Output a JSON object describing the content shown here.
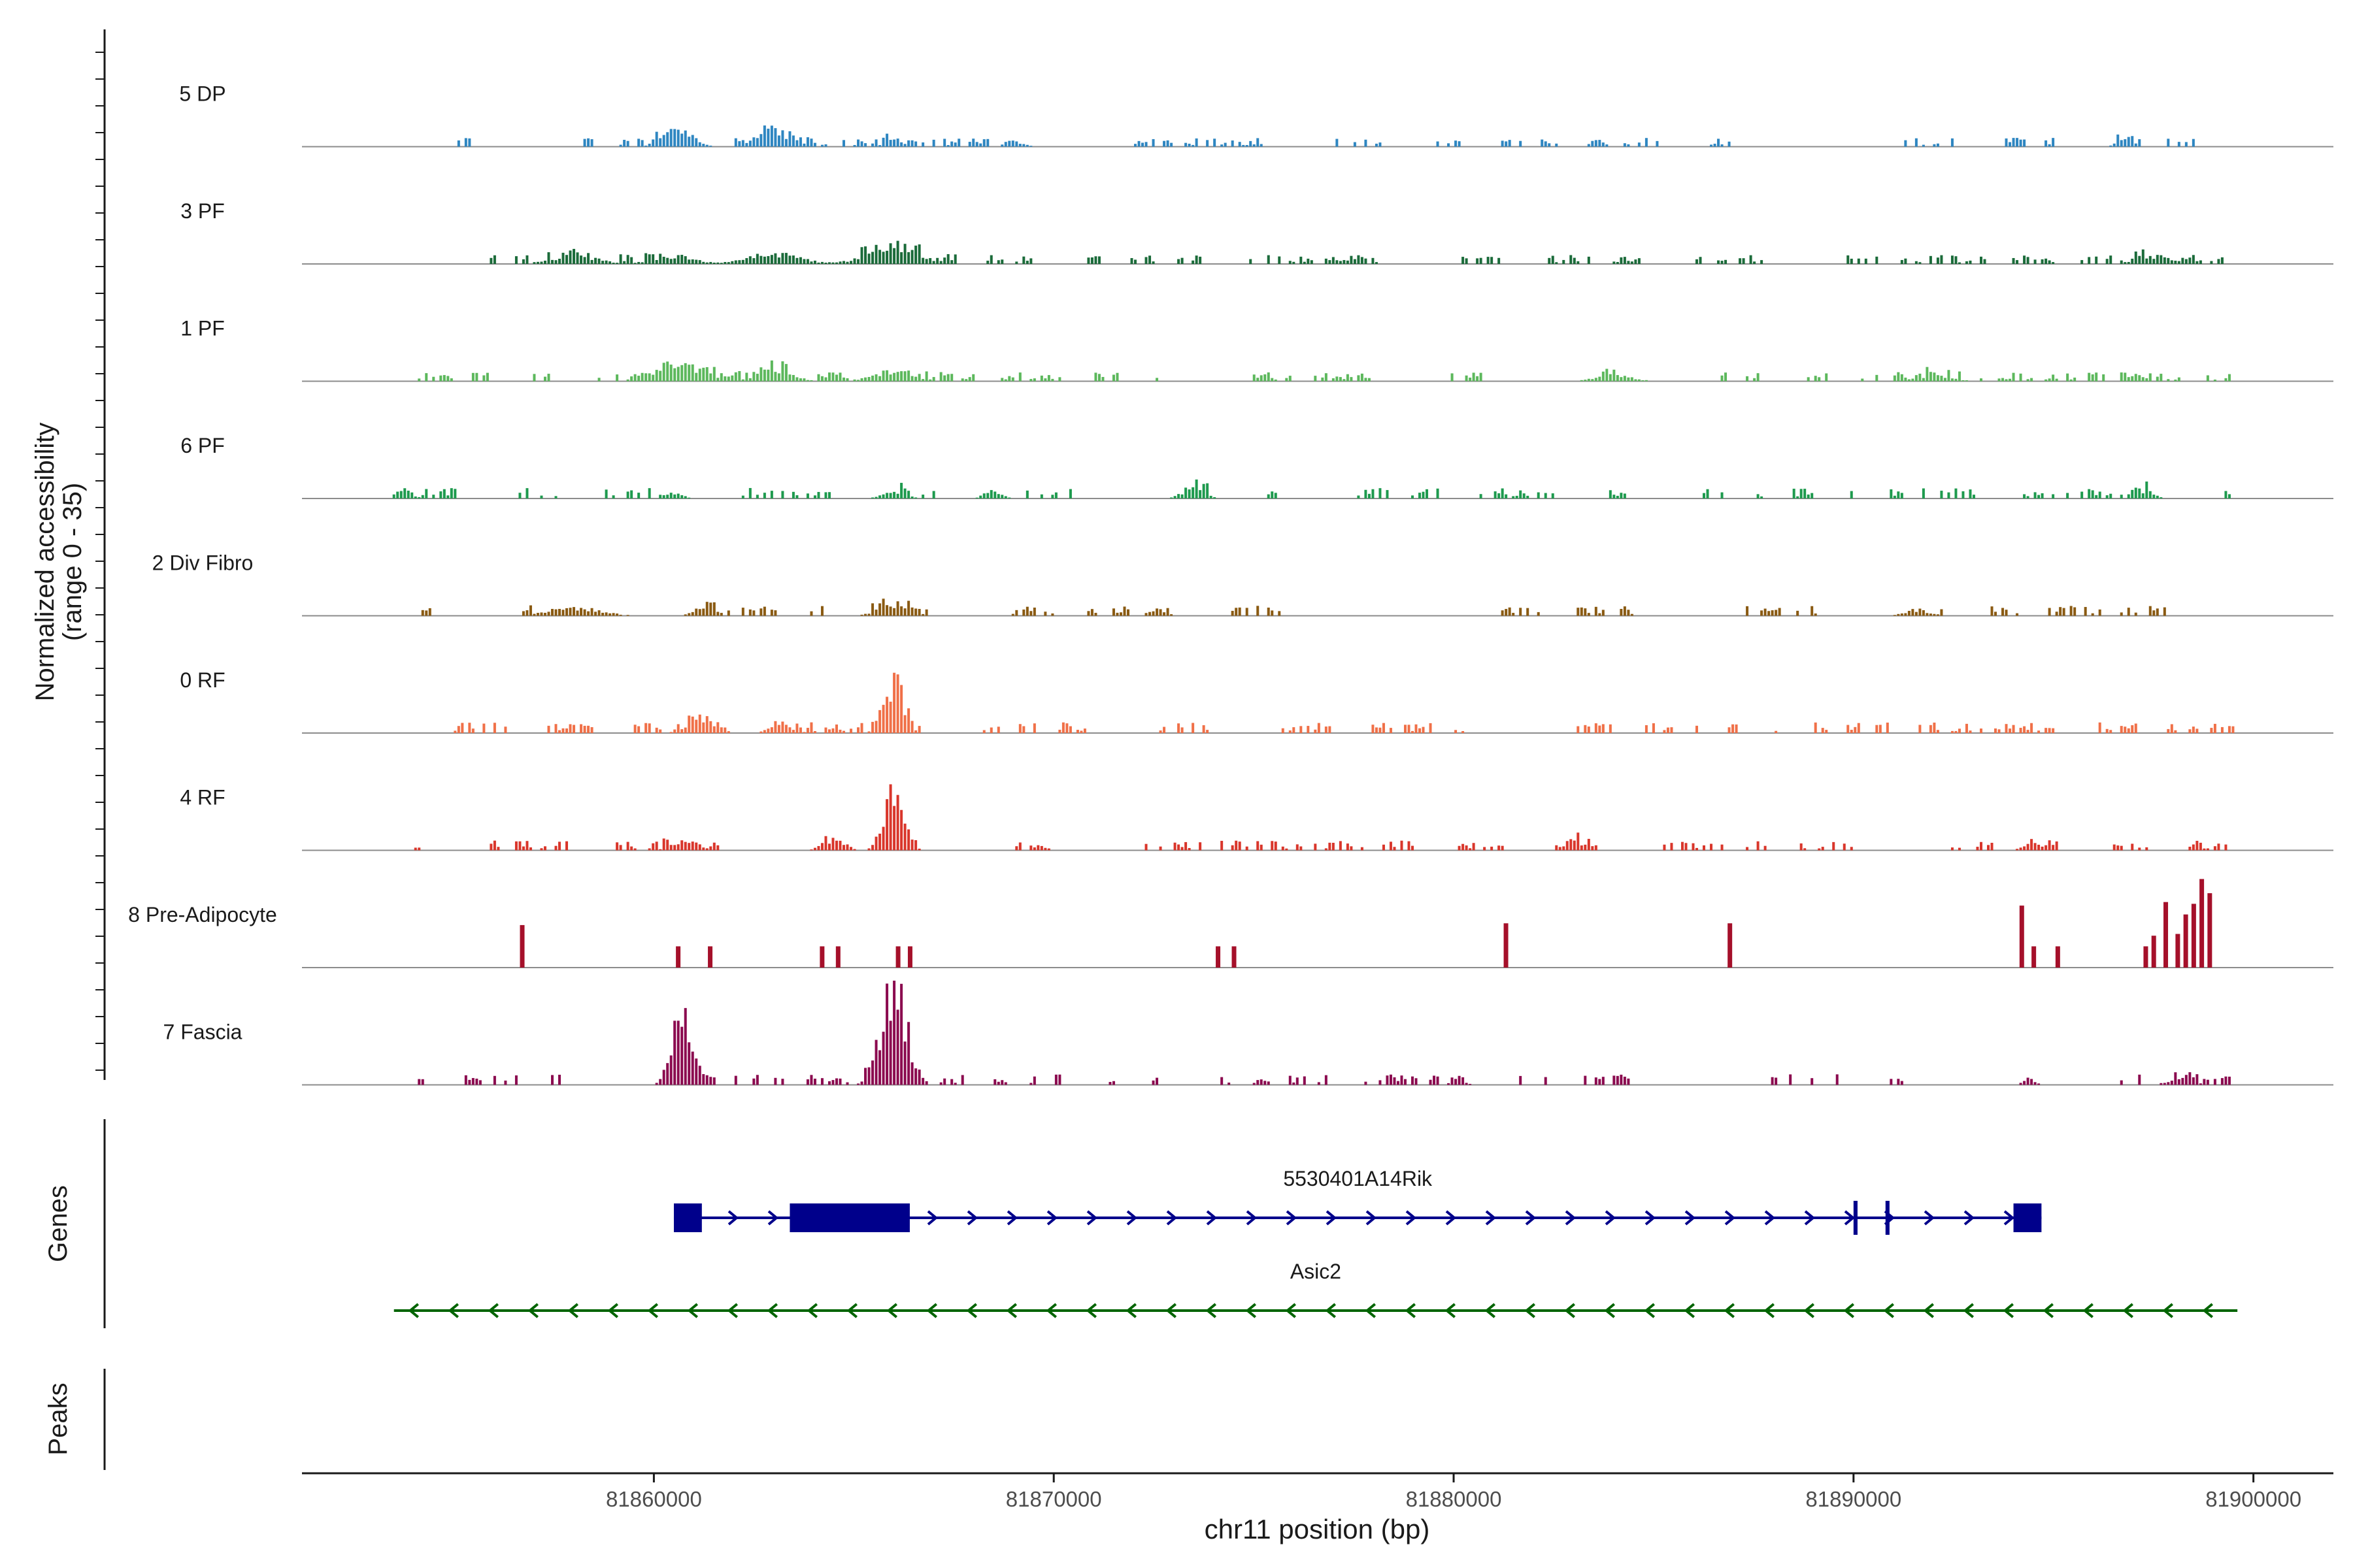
{
  "chart_data": {
    "type": "area",
    "title": "",
    "region": {
      "chromosome": "chr11",
      "start": 81853500,
      "end": 81899500
    },
    "x_axis": {
      "label": "chr11 position (bp)",
      "range": [
        81851200,
        81902000
      ],
      "ticks": [
        "81860000",
        "81870000",
        "81880000",
        "81890000",
        "81900000"
      ],
      "tick_values": [
        81860000,
        81870000,
        81880000,
        81890000,
        81900000
      ]
    },
    "y_axis": {
      "label_line1": "Normalized accessibility",
      "label_line2": "(range 0 - 35)",
      "range": [
        0,
        35
      ]
    },
    "tracks": [
      {
        "name": "5 DP",
        "color": "#2e86c1",
        "pattern": "sparse",
        "base": 2.5,
        "density": 0.55,
        "peaks": [
          [
            81860600,
            9,
            500
          ],
          [
            81863000,
            8,
            600
          ],
          [
            81866000,
            4,
            300
          ],
          [
            81869000,
            3,
            300
          ],
          [
            81883600,
            4,
            200
          ],
          [
            81896800,
            3,
            300
          ]
        ]
      },
      {
        "name": "3 PF",
        "color": "#1b6b3a",
        "pattern": "sparse",
        "base": 2.5,
        "density": 0.6,
        "peaks": [
          [
            81858000,
            4,
            800
          ],
          [
            81860500,
            4,
            700
          ],
          [
            81863000,
            5,
            900
          ],
          [
            81866000,
            8,
            900
          ],
          [
            81897500,
            4,
            600
          ]
        ]
      },
      {
        "name": "1 PF",
        "color": "#5cb85c",
        "pattern": "sparse",
        "base": 2.5,
        "density": 0.6,
        "peaks": [
          [
            81860600,
            9,
            800
          ],
          [
            81863000,
            6,
            600
          ],
          [
            81866000,
            5,
            700
          ],
          [
            81884000,
            3,
            600
          ],
          [
            81892000,
            3,
            600
          ]
        ]
      },
      {
        "name": "6 PF",
        "color": "#1e9a4e",
        "pattern": "sparse",
        "base": 3,
        "density": 0.45,
        "peaks": [
          [
            81853700,
            5,
            300
          ],
          [
            81860500,
            3,
            300
          ],
          [
            81866000,
            4,
            400
          ],
          [
            81868500,
            4,
            300
          ],
          [
            81873500,
            5,
            400
          ],
          [
            81897300,
            4,
            300
          ]
        ]
      },
      {
        "name": "2 Div Fibro",
        "color": "#8a5a12",
        "pattern": "sparse",
        "base": 2.8,
        "density": 0.55,
        "peaks": [
          [
            81858000,
            4,
            900
          ],
          [
            81861200,
            5,
            300
          ],
          [
            81866000,
            6,
            500
          ],
          [
            81872600,
            3,
            300
          ],
          [
            81891600,
            3,
            400
          ]
        ]
      },
      {
        "name": "0 RF",
        "color": "#f07048",
        "pattern": "sparse",
        "base": 3,
        "density": 0.6,
        "peaks": [
          [
            81866000,
            25,
            350
          ],
          [
            81861200,
            5,
            500
          ],
          [
            81863200,
            4,
            400
          ]
        ]
      },
      {
        "name": "4 RF",
        "color": "#d9362b",
        "pattern": "sparse",
        "base": 2.8,
        "density": 0.5,
        "peaks": [
          [
            81866000,
            30,
            350
          ],
          [
            81860800,
            6,
            400
          ],
          [
            81864500,
            5,
            400
          ],
          [
            81883000,
            6,
            300
          ],
          [
            81894500,
            5,
            300
          ]
        ]
      },
      {
        "name": "8 Pre-Adipocyte",
        "color": "#a5102a",
        "pattern": "spikes",
        "spikes": [
          [
            81856700,
            24
          ],
          [
            81860600,
            12
          ],
          [
            81861400,
            12
          ],
          [
            81864200,
            12
          ],
          [
            81864600,
            12
          ],
          [
            81866100,
            12
          ],
          [
            81866400,
            12
          ],
          [
            81874100,
            12
          ],
          [
            81874500,
            12
          ],
          [
            81881300,
            25
          ],
          [
            81886900,
            25
          ],
          [
            81894200,
            35
          ],
          [
            81894500,
            12
          ],
          [
            81895100,
            12
          ],
          [
            81897300,
            12
          ],
          [
            81897500,
            18
          ],
          [
            81897800,
            37
          ],
          [
            81898100,
            19
          ],
          [
            81898300,
            30
          ],
          [
            81898500,
            36
          ],
          [
            81898700,
            50
          ],
          [
            81898900,
            42
          ]
        ]
      },
      {
        "name": "7 Fascia",
        "color": "#8b0a4f",
        "pattern": "sparse",
        "base": 3,
        "density": 0.45,
        "peaks": [
          [
            81860700,
            35,
            350
          ],
          [
            81866000,
            50,
            450
          ],
          [
            81875200,
            3,
            200
          ],
          [
            81880100,
            5,
            200
          ],
          [
            81894400,
            3,
            200
          ],
          [
            81898200,
            4,
            400
          ]
        ]
      }
    ],
    "genes": [
      {
        "name": "5530401A14Rik",
        "strand": "+",
        "color": "#00008b",
        "start": 81860500,
        "end": 81894700,
        "exons": [
          [
            81860500,
            81861200
          ],
          [
            81863400,
            81866400
          ],
          [
            81890000,
            81890100
          ],
          [
            81890800,
            81890900
          ],
          [
            81894000,
            81894700
          ]
        ]
      },
      {
        "name": "Asic2",
        "strand": "-",
        "color": "#006400",
        "start": 81853500,
        "end": 81899600,
        "exons": []
      }
    ],
    "panel_labels": {
      "genes": "Genes",
      "peaks": "Peaks"
    }
  }
}
